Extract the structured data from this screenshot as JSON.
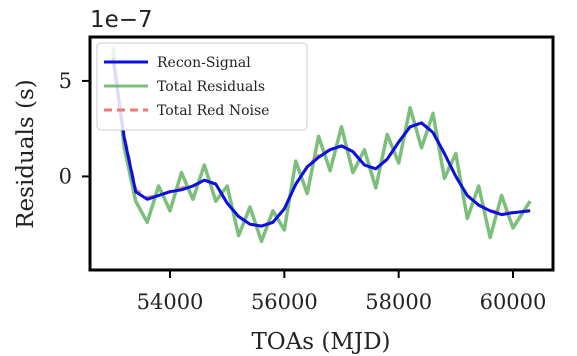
{
  "chart_data": {
    "type": "line",
    "xlabel": "TOAs (MJD)",
    "ylabel": "Residuals (s)",
    "y_offset_text": "1e−7",
    "xlim": [
      52600,
      60700
    ],
    "ylim": [
      -4.9,
      7.3
    ],
    "y_scale_factor": 1e-07,
    "x_ticks": [
      54000,
      56000,
      58000,
      60000
    ],
    "x_tick_labels": [
      "54000",
      "56000",
      "58000",
      "60000"
    ],
    "y_ticks": [
      5,
      0
    ],
    "y_tick_labels": [
      "5",
      "0"
    ],
    "grid": false,
    "legend_position": "upper-left",
    "series": [
      {
        "name": "Recon-Signal",
        "color": "#0a10e0",
        "style": "solid",
        "x": [
          53000,
          53200,
          53400,
          53600,
          53800,
          54000,
          54200,
          54400,
          54600,
          54800,
          55000,
          55200,
          55400,
          55600,
          55800,
          56000,
          56200,
          56400,
          56600,
          56800,
          57000,
          57200,
          57400,
          57600,
          57800,
          58000,
          58200,
          58400,
          58600,
          58800,
          59000,
          59200,
          59400,
          59600,
          59800,
          60000,
          60300
        ],
        "y": [
          6.2,
          2.0,
          -0.8,
          -1.2,
          -1.0,
          -0.8,
          -0.7,
          -0.5,
          -0.2,
          -0.4,
          -1.4,
          -2.1,
          -2.5,
          -2.6,
          -2.4,
          -1.7,
          -0.4,
          0.5,
          1.0,
          1.4,
          1.6,
          1.3,
          0.6,
          0.4,
          0.9,
          1.8,
          2.6,
          2.8,
          2.3,
          1.2,
          0.0,
          -1.0,
          -1.5,
          -1.8,
          -2.0,
          -1.9,
          -1.8
        ]
      },
      {
        "name": "Total Residuals",
        "color": "#5aaf5a",
        "style": "solid",
        "x": [
          53000,
          53200,
          53400,
          53600,
          53800,
          54000,
          54200,
          54400,
          54600,
          54800,
          55000,
          55200,
          55400,
          55600,
          55800,
          56000,
          56200,
          56400,
          56600,
          56800,
          57000,
          57200,
          57400,
          57600,
          57800,
          58000,
          58200,
          58400,
          58600,
          58800,
          59000,
          59200,
          59400,
          59600,
          59800,
          60000,
          60300
        ],
        "y": [
          6.8,
          1.5,
          -1.3,
          -2.4,
          -0.5,
          -1.8,
          0.2,
          -1.2,
          0.6,
          -1.3,
          -0.5,
          -3.1,
          -1.6,
          -3.4,
          -1.8,
          -2.8,
          0.8,
          -0.9,
          2.1,
          0.3,
          2.6,
          0.2,
          1.4,
          -0.6,
          2.2,
          0.7,
          3.6,
          1.5,
          3.3,
          -0.1,
          1.2,
          -2.2,
          -0.5,
          -3.2,
          -1.0,
          -2.7,
          -1.3
        ]
      },
      {
        "name": "Total Red Noise",
        "color": "#ee7a72",
        "style": "dashed",
        "x": [
          53000,
          53200,
          53400,
          53600,
          53800,
          54000,
          54200,
          54400,
          54600,
          54800,
          55000,
          55200,
          55400,
          55600,
          55800,
          56000,
          56200,
          56400,
          56600,
          56800,
          57000,
          57200,
          57400,
          57600,
          57800,
          58000,
          58200,
          58400,
          58600,
          58800,
          59000,
          59200,
          59400,
          59600,
          59800,
          60000,
          60300
        ],
        "y": [
          6.1,
          2.1,
          -0.7,
          -1.1,
          -1.0,
          -0.8,
          -0.6,
          -0.5,
          -0.2,
          -0.4,
          -1.4,
          -2.1,
          -2.5,
          -2.6,
          -2.4,
          -1.7,
          -0.4,
          0.5,
          1.1,
          1.4,
          1.6,
          1.3,
          0.6,
          0.4,
          0.9,
          1.8,
          2.6,
          2.8,
          2.3,
          1.2,
          0.0,
          -1.0,
          -1.5,
          -1.8,
          -1.9,
          -1.9,
          -1.8
        ]
      }
    ]
  }
}
